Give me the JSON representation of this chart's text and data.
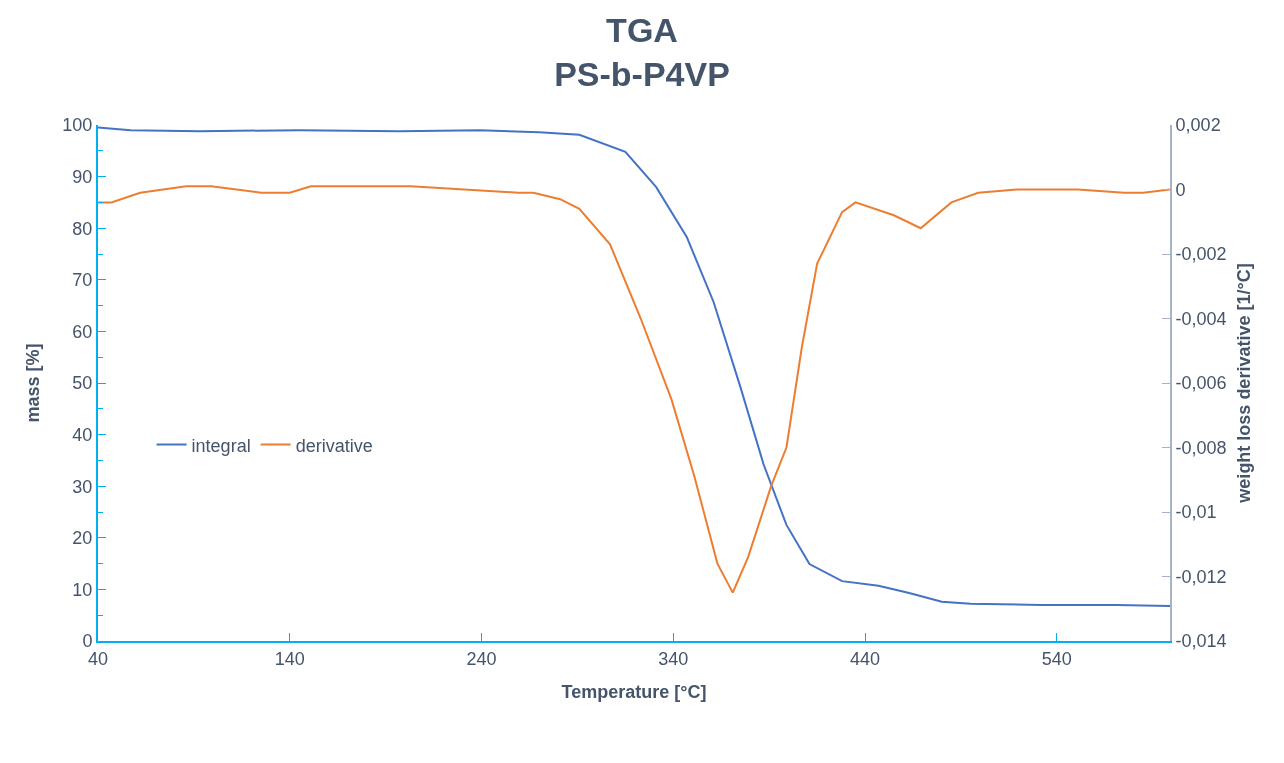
{
  "chart_data": {
    "type": "line",
    "title": "TGA\nPS-b-P4VP",
    "xlabel": "Temperature [°C]",
    "ylabel": "mass [%]",
    "y2label": "weight loss derivative [1/°C]",
    "xlim": [
      40,
      599
    ],
    "xticks": [
      40,
      140,
      240,
      340,
      440,
      540
    ],
    "ylim": [
      0,
      100
    ],
    "yticks": [
      0,
      10,
      20,
      30,
      40,
      50,
      60,
      70,
      80,
      90,
      100
    ],
    "y2lim": [
      -0.014,
      0.002
    ],
    "y2ticks": [
      {
        "value": -0.014,
        "label": "-0,014"
      },
      {
        "value": -0.012,
        "label": "-0,012"
      },
      {
        "value": -0.01,
        "label": "-0,01"
      },
      {
        "value": -0.008,
        "label": "-0,008"
      },
      {
        "value": -0.006,
        "label": "-0,006"
      },
      {
        "value": -0.004,
        "label": "-0,004"
      },
      {
        "value": -0.002,
        "label": "-0,002"
      },
      {
        "value": 0,
        "label": "0"
      },
      {
        "value": 0.002,
        "label": "0,002"
      }
    ],
    "legend": "left",
    "marker": "none",
    "line_style": "solid",
    "series": [
      {
        "name": "integral",
        "color": "#4472c4",
        "x": [
          40,
          57,
          93,
          145,
          197,
          239,
          270,
          291,
          315,
          331,
          347,
          361,
          375,
          387,
          399,
          411,
          428,
          447,
          463,
          480,
          495,
          532,
          571,
          599
        ],
        "values": [
          99.5,
          99.0,
          98.8,
          99.0,
          98.8,
          99.0,
          98.6,
          98.1,
          94.8,
          88.0,
          78.3,
          65.7,
          49.2,
          34.3,
          22.5,
          14.9,
          11.6,
          10.7,
          9.3,
          7.6,
          7.2,
          7.0,
          7.0,
          6.8
        ]
      },
      {
        "name": "derivative",
        "color": "#ed7d31",
        "axis": "y2",
        "x": [
          40,
          47,
          62,
          86,
          99,
          125,
          140,
          151,
          203,
          231,
          259,
          267,
          281,
          291,
          307,
          323,
          339,
          351,
          363,
          371,
          379,
          391,
          399,
          407,
          415,
          428,
          435,
          455,
          469,
          485,
          499,
          519,
          551,
          575,
          585,
          599
        ],
        "values": [
          -0.0004,
          -0.0004,
          -0.0001,
          0.0001,
          0.0001,
          -0.0001,
          -0.0001,
          0.0001,
          0.0001,
          0.0,
          -0.0001,
          -0.0001,
          -0.0003,
          -0.0006,
          -0.0017,
          -0.004,
          -0.0065,
          -0.0089,
          -0.0116,
          -0.0125,
          -0.0114,
          -0.0092,
          -0.008,
          -0.0049,
          -0.0023,
          -0.0007,
          -0.0004,
          -0.0008,
          -0.0012,
          -0.0004,
          -0.0001,
          0.0,
          0.0,
          -0.0001,
          -0.0001,
          0.0
        ]
      }
    ]
  }
}
